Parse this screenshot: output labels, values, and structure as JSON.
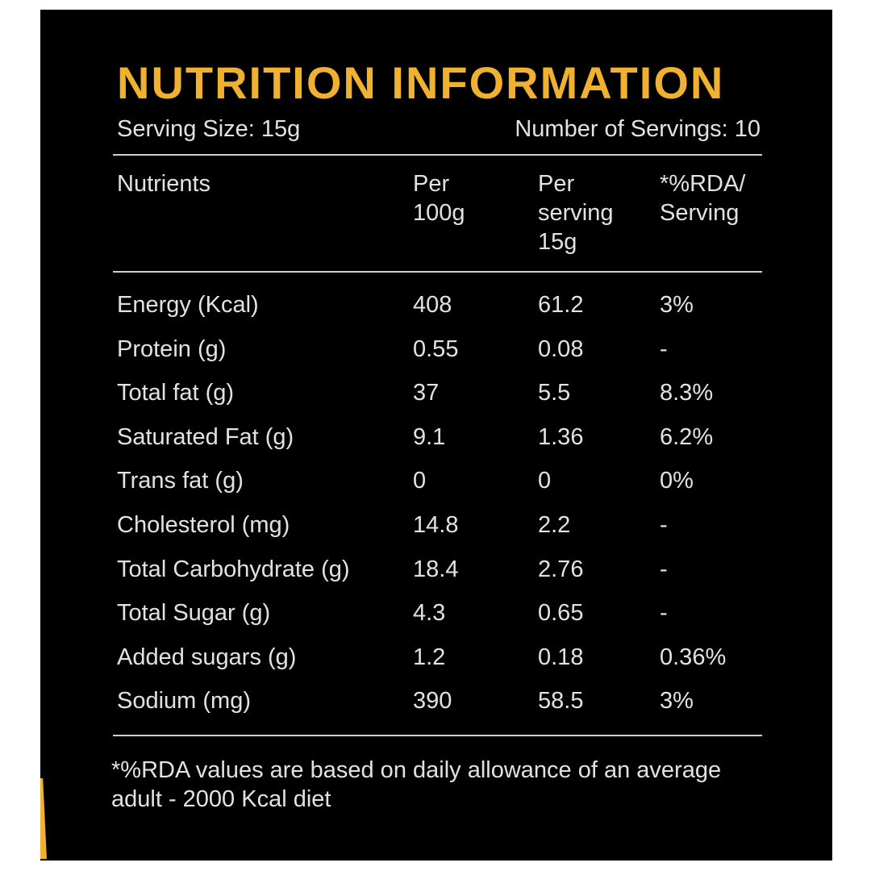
{
  "title": "NUTRITION INFORMATION",
  "serving_size": "Serving Size: 15g",
  "servings": "Number of Servings: 10",
  "headers": {
    "nutrients": "Nutrients",
    "per100": [
      "Per",
      "100g"
    ],
    "per_serving": [
      "Per",
      "serving",
      "15g"
    ],
    "rda": [
      "*%RDA/",
      "Serving"
    ]
  },
  "rows": [
    [
      "Energy (Kcal)",
      "408",
      "61.2",
      "3%"
    ],
    [
      "Protein (g)",
      "0.55",
      "0.08",
      "-"
    ],
    [
      "Total fat (g)",
      "37",
      "5.5",
      "8.3%"
    ],
    [
      "Saturated Fat (g)",
      "9.1",
      "1.36",
      "6.2%"
    ],
    [
      "Trans fat (g)",
      "0",
      "0",
      "0%"
    ],
    [
      "Cholesterol (mg)",
      "14.8",
      "2.2",
      "-"
    ],
    [
      "Total Carbohydrate (g)",
      "18.4",
      "2.76",
      "-"
    ],
    [
      "Total Sugar (g)",
      "4.3",
      "0.65",
      "-"
    ],
    [
      "Added sugars (g)",
      "1.2",
      "0.18",
      "0.36%"
    ],
    [
      "Sodium (mg)",
      "390",
      "58.5",
      "3%"
    ]
  ],
  "footnote": [
    "*%RDA values are based on daily allowance of an average",
    "adult - 2000 Kcal diet"
  ],
  "colors": {
    "background": "#000000",
    "title": "#f0b030",
    "text": "#e2e2e2"
  }
}
